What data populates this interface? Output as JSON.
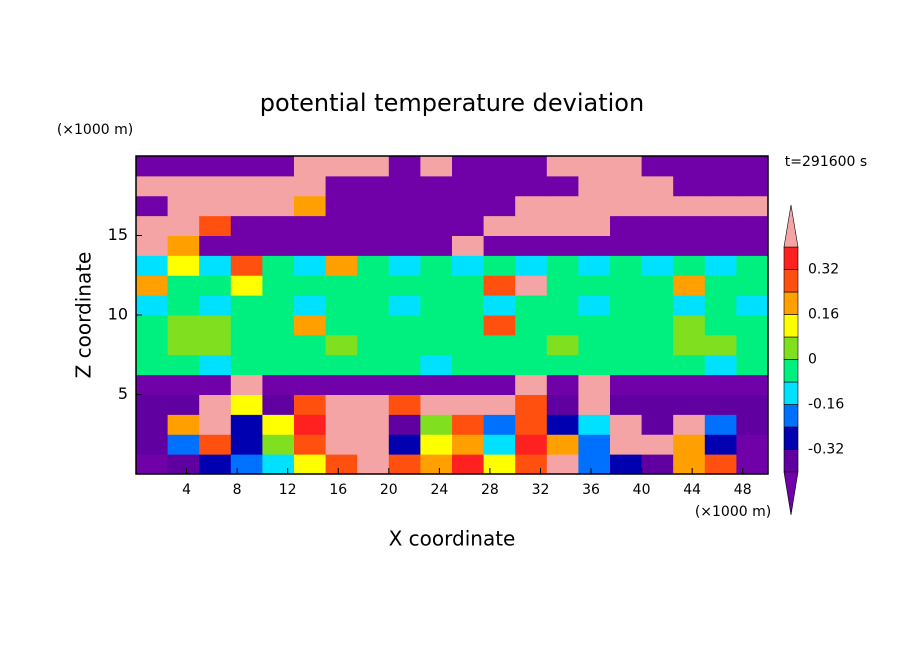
{
  "chart_data": {
    "type": "contour",
    "title": "potential temperature deviation",
    "x_label": "X coordinate",
    "y_label": "Z coordinate",
    "x_unit": "(×1000 m)",
    "y_unit": "(×1000 m)",
    "time_label": "t=291600 s",
    "xlim": [
      0,
      50
    ],
    "ylim": [
      0,
      20
    ],
    "xticks": [
      4,
      8,
      12,
      16,
      20,
      24,
      28,
      32,
      36,
      40,
      44,
      48
    ],
    "yticks": [
      5,
      10,
      15
    ],
    "x": [
      1.25,
      3.75,
      6.25,
      8.75,
      11.25,
      13.75,
      16.25,
      18.75,
      21.25,
      23.75,
      26.25,
      28.75,
      31.25,
      33.75,
      36.25,
      38.75,
      41.25,
      43.75,
      46.25,
      48.75
    ],
    "y": [
      0.625,
      1.875,
      3.125,
      4.375,
      5.625,
      6.875,
      8.125,
      9.375,
      10.625,
      11.875,
      13.125,
      14.375,
      15.625,
      16.875,
      18.125,
      19.375
    ],
    "z": [
      [
        -0.5,
        -0.35,
        -0.3,
        -0.2,
        -0.1,
        0.1,
        0.3,
        0.45,
        0.3,
        0.2,
        0.35,
        0.1,
        0.3,
        0.45,
        -0.2,
        -0.3,
        -0.36,
        0.2,
        0.3,
        -0.5
      ],
      [
        -0.36,
        -0.2,
        0.3,
        -0.28,
        0.05,
        0.25,
        0.45,
        0.5,
        -0.3,
        0.1,
        0.2,
        -0.1,
        0.35,
        0.2,
        -0.2,
        0.45,
        0.5,
        0.2,
        -0.3,
        -0.5
      ],
      [
        -0.36,
        0.2,
        0.5,
        -0.28,
        0.1,
        0.35,
        0.5,
        0.45,
        -0.35,
        0.05,
        0.25,
        -0.2,
        0.3,
        -0.3,
        -0.1,
        0.5,
        -0.36,
        0.45,
        -0.2,
        -0.36
      ],
      [
        -0.36,
        -0.34,
        0.5,
        0.1,
        -0.36,
        0.25,
        0.45,
        0.5,
        0.3,
        0.5,
        0.45,
        0.5,
        0.3,
        -0.36,
        0.5,
        -0.36,
        -0.36,
        -0.36,
        -0.36,
        -0.36
      ],
      [
        -0.5,
        -0.5,
        -0.5,
        0.45,
        -0.5,
        -0.5,
        -0.5,
        -0.5,
        -0.5,
        -0.5,
        -0.5,
        -0.5,
        0.45,
        -0.5,
        0.45,
        -0.5,
        -0.5,
        -0.5,
        -0.5,
        -0.5
      ],
      [
        -0.04,
        -0.04,
        -0.1,
        -0.04,
        -0.04,
        -0.04,
        -0.04,
        -0.04,
        -0.04,
        -0.1,
        -0.04,
        -0.04,
        -0.04,
        -0.04,
        -0.04,
        -0.04,
        -0.04,
        -0.04,
        -0.1,
        -0.04
      ],
      [
        -0.04,
        0.04,
        0.04,
        -0.04,
        -0.04,
        -0.04,
        0.04,
        -0.04,
        -0.04,
        -0.04,
        -0.04,
        -0.04,
        -0.04,
        0.04,
        -0.04,
        -0.04,
        -0.04,
        0.04,
        0.04,
        -0.04
      ],
      [
        -0.04,
        0.04,
        0.04,
        -0.04,
        -0.04,
        0.2,
        -0.04,
        -0.04,
        -0.04,
        -0.04,
        -0.04,
        0.3,
        -0.04,
        -0.04,
        -0.04,
        -0.04,
        -0.04,
        0.04,
        -0.04,
        -0.04
      ],
      [
        -0.1,
        -0.04,
        -0.1,
        -0.04,
        -0.04,
        -0.1,
        -0.04,
        -0.04,
        -0.1,
        -0.04,
        -0.04,
        -0.1,
        -0.04,
        -0.04,
        -0.1,
        -0.04,
        -0.04,
        -0.1,
        -0.04,
        -0.1
      ],
      [
        0.2,
        -0.04,
        -0.04,
        0.1,
        -0.04,
        -0.04,
        -0.04,
        -0.04,
        -0.04,
        -0.04,
        -0.04,
        0.3,
        0.45,
        -0.04,
        -0.04,
        -0.04,
        -0.04,
        0.2,
        -0.04,
        -0.04
      ],
      [
        -0.1,
        0.1,
        -0.1,
        0.3,
        -0.04,
        -0.1,
        0.2,
        -0.04,
        -0.1,
        -0.04,
        -0.1,
        -0.04,
        -0.1,
        -0.04,
        -0.1,
        -0.04,
        -0.1,
        -0.04,
        -0.1,
        -0.04
      ],
      [
        0.45,
        0.2,
        -0.5,
        -0.5,
        -0.5,
        -0.5,
        -0.5,
        -0.5,
        -0.5,
        -0.5,
        0.45,
        -0.5,
        -0.5,
        -0.5,
        -0.5,
        -0.5,
        -0.5,
        -0.5,
        -0.5,
        -0.5
      ],
      [
        0.45,
        0.5,
        0.3,
        -0.5,
        -0.5,
        -0.5,
        -0.5,
        -0.5,
        -0.5,
        -0.5,
        -0.5,
        0.45,
        0.5,
        0.45,
        0.5,
        -0.5,
        -0.5,
        -0.5,
        -0.5,
        -0.5
      ],
      [
        -0.5,
        0.45,
        0.5,
        0.5,
        0.45,
        0.2,
        -0.5,
        -0.5,
        -0.5,
        -0.5,
        -0.5,
        -0.5,
        0.45,
        0.5,
        0.5,
        0.5,
        0.45,
        0.5,
        0.5,
        0.45
      ],
      [
        0.5,
        0.5,
        0.45,
        0.5,
        0.5,
        0.5,
        -0.5,
        -0.5,
        -0.5,
        -0.5,
        -0.5,
        -0.5,
        -0.5,
        -0.5,
        0.45,
        0.5,
        0.5,
        -0.5,
        -0.5,
        -0.5
      ],
      [
        -0.5,
        -0.5,
        -0.5,
        -0.5,
        -0.5,
        0.45,
        0.5,
        0.5,
        -0.5,
        0.45,
        -0.5,
        -0.5,
        -0.5,
        0.45,
        0.5,
        0.5,
        -0.5,
        -0.5,
        -0.5,
        -0.5
      ]
    ],
    "levels": [
      -0.4,
      -0.32,
      -0.24,
      -0.16,
      -0.08,
      0,
      0.08,
      0.16,
      0.24,
      0.32,
      0.4
    ],
    "colors": [
      "#7000a8",
      "#6000a0",
      "#0000b0",
      "#0070ff",
      "#00e0ff",
      "#00f080",
      "#80e020",
      "#ffff00",
      "#ffa000",
      "#ff5010",
      "#ff2020",
      "#f4a4a4"
    ],
    "colorbar_ticks": [
      0.32,
      0.16,
      0,
      -0.16,
      -0.32
    ]
  }
}
